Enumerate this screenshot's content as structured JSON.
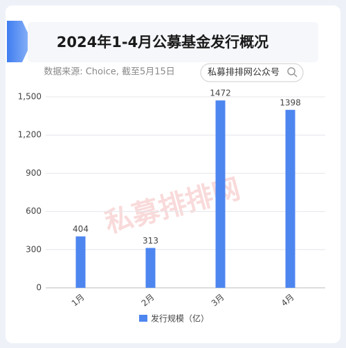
{
  "chart_data": {
    "type": "bar",
    "title": "2024年1-4月公募基金发行概况",
    "subtitle": "数据来源: Choice, 截至5月15日",
    "badge": "私募排排网公众号",
    "watermark": "私募排排网",
    "categories": [
      "1月",
      "2月",
      "3月",
      "4月"
    ],
    "series": [
      {
        "name": "发行规模（亿）",
        "color": "#4e86f0",
        "values": [
          404,
          313,
          1472,
          1398
        ]
      }
    ],
    "ylim": [
      0,
      1500
    ],
    "yticks": [
      0,
      300,
      600,
      900,
      {
        "value": 1200,
        "label": "1,200"
      },
      {
        "value": 1500,
        "label": "1,500"
      }
    ],
    "grid": true
  }
}
